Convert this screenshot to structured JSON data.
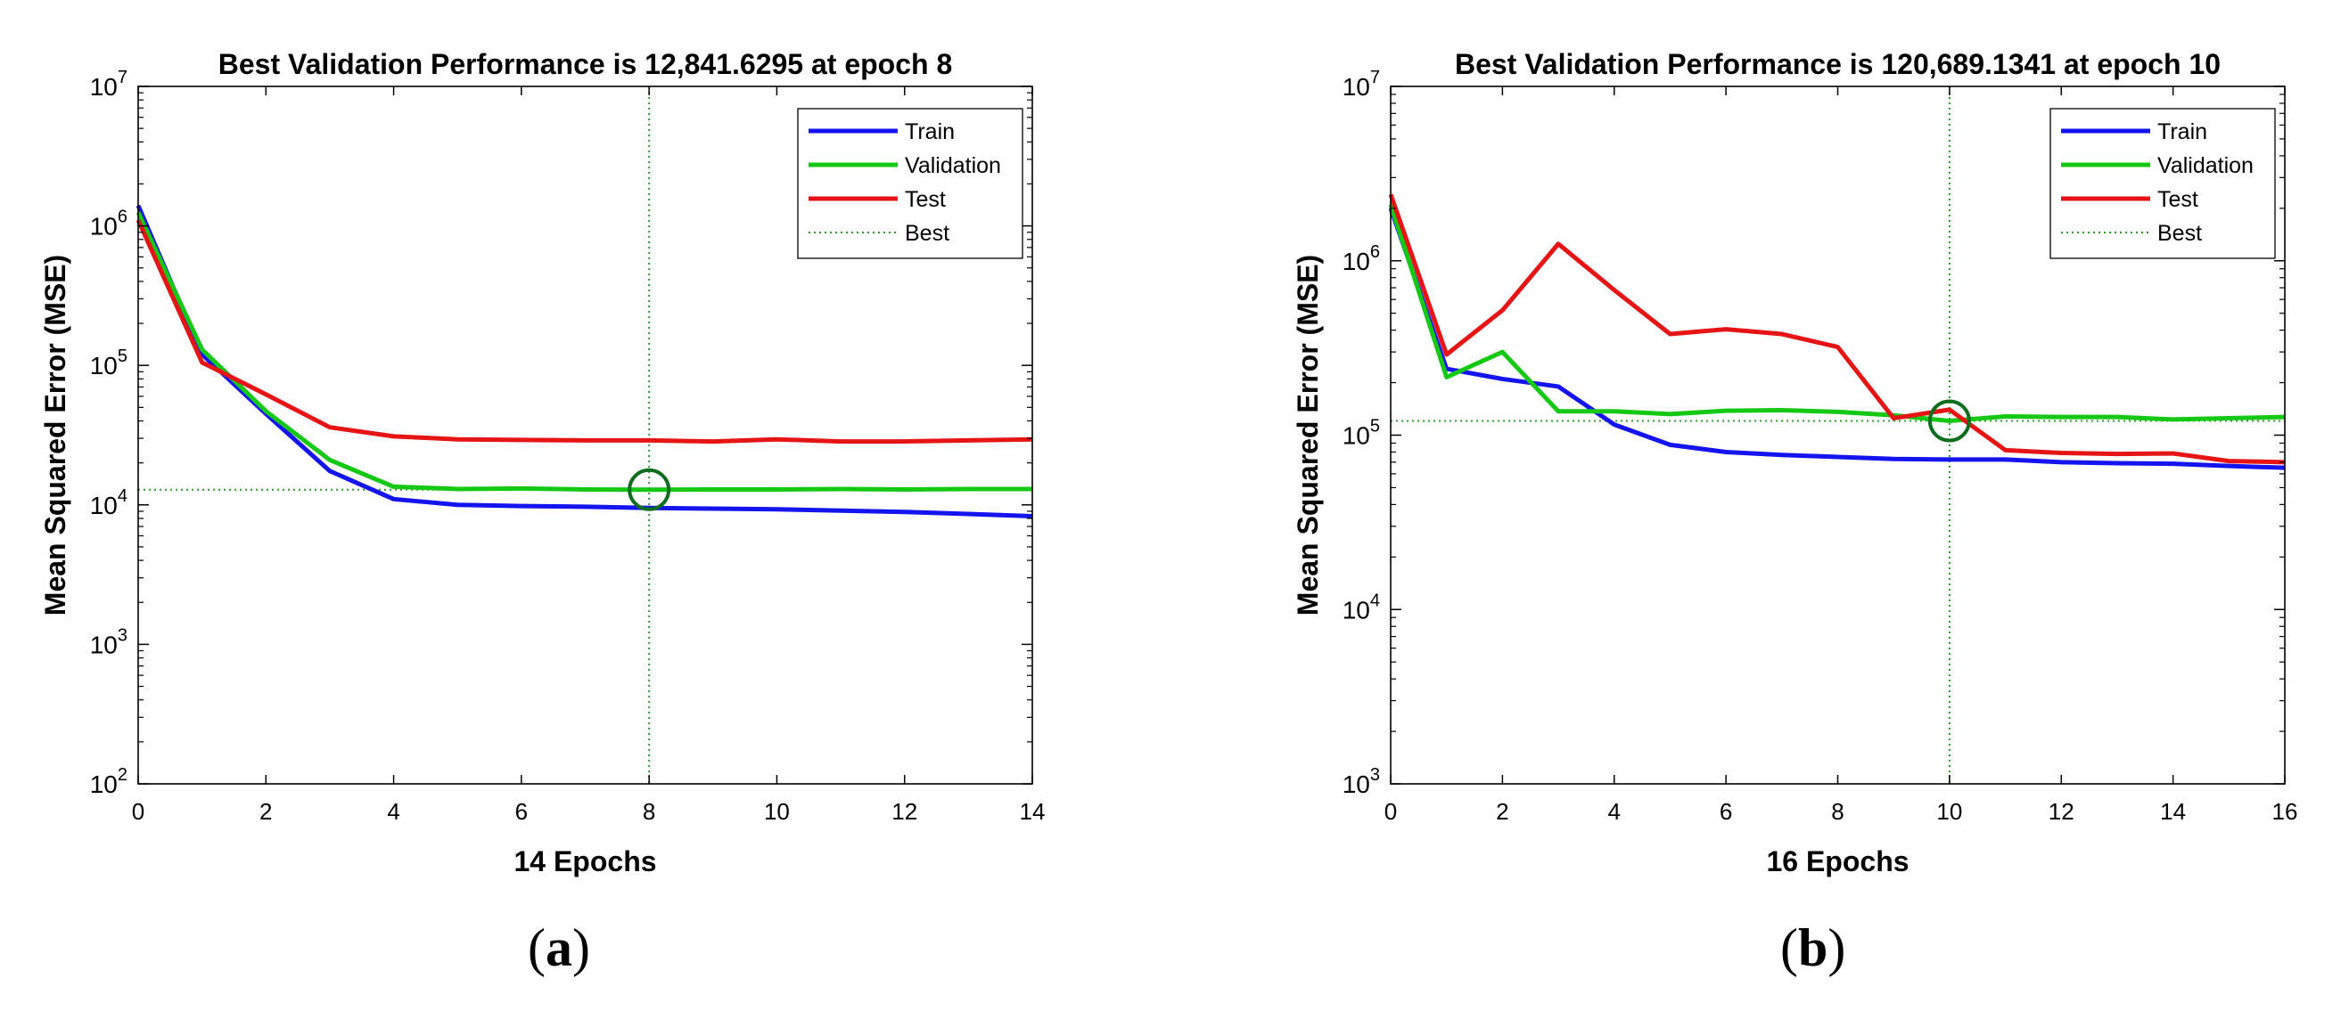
{
  "chart_data": [
    {
      "type": "line",
      "panel_label": "a",
      "title": "Best Validation Performance is 12,841.6295 at epoch 8",
      "xlabel": "14 Epochs",
      "ylabel": "Mean Squared Error  (MSE)",
      "yscale": "log",
      "xlim": [
        0,
        14
      ],
      "ylim_exp": [
        2,
        7
      ],
      "xticks": [
        0,
        2,
        4,
        6,
        8,
        10,
        12,
        14
      ],
      "xtick_labels": [
        "0",
        "2",
        "4",
        "6",
        "8",
        "10",
        "12",
        "14"
      ],
      "yticks_exp": [
        2,
        3,
        4,
        5,
        6,
        7
      ],
      "ytick_base": "10",
      "ytick_exponents": [
        "2",
        "3",
        "4",
        "5",
        "6",
        "7"
      ],
      "legend_position": "top-right",
      "x": [
        0,
        1,
        2,
        3,
        4,
        5,
        6,
        7,
        8,
        9,
        10,
        11,
        12,
        13,
        14
      ],
      "series": [
        {
          "name": "Train",
          "color": "#1414f0",
          "values": [
            1400000,
            120000,
            45000,
            17500,
            11000,
            10000,
            9800,
            9700,
            9500,
            9400,
            9300,
            9100,
            8900,
            8600,
            8300
          ]
        },
        {
          "name": "Validation",
          "color": "#14c814",
          "values": [
            1250000,
            130000,
            47000,
            21000,
            13500,
            13000,
            13100,
            12900,
            12841.6295,
            12900,
            12900,
            13000,
            12900,
            13000,
            13000
          ]
        },
        {
          "name": "Test",
          "color": "#e61414",
          "values": [
            1100000,
            105000,
            62000,
            36000,
            31000,
            29500,
            29200,
            29000,
            29000,
            28500,
            29500,
            28500,
            28500,
            29000,
            29500
          ]
        }
      ],
      "best": {
        "label": "Best",
        "epoch": 8,
        "value": 12841.6295,
        "color": "#28a028"
      }
    },
    {
      "type": "line",
      "panel_label": "b",
      "title": "Best Validation Performance is 120,689.1341 at epoch 10",
      "xlabel": "16 Epochs",
      "ylabel": "Mean Squared Error  (MSE)",
      "yscale": "log",
      "xlim": [
        0,
        16
      ],
      "ylim_exp": [
        3,
        7
      ],
      "xticks": [
        0,
        2,
        4,
        6,
        8,
        10,
        12,
        14,
        16
      ],
      "xtick_labels": [
        "0",
        "2",
        "4",
        "6",
        "8",
        "10",
        "12",
        "14",
        "16"
      ],
      "yticks_exp": [
        3,
        4,
        5,
        6,
        7
      ],
      "ytick_base": "10",
      "ytick_exponents": [
        "3",
        "4",
        "5",
        "6",
        "7"
      ],
      "legend_position": "top-right",
      "x": [
        0,
        1,
        2,
        3,
        4,
        5,
        6,
        7,
        8,
        9,
        10,
        11,
        12,
        13,
        14,
        15,
        16
      ],
      "series": [
        {
          "name": "Train",
          "color": "#1414f0",
          "values": [
            2000000,
            240000,
            210000,
            190000,
            115000,
            88000,
            80000,
            77000,
            75000,
            73000,
            72500,
            72500,
            70000,
            69000,
            68500,
            66500,
            65000
          ]
        },
        {
          "name": "Validation",
          "color": "#14c814",
          "values": [
            2100000,
            215000,
            300000,
            137000,
            137000,
            132000,
            138000,
            139000,
            136000,
            130000,
            120689.1341,
            128000,
            127000,
            127000,
            123000,
            125000,
            127000
          ]
        },
        {
          "name": "Test",
          "color": "#e61414",
          "values": [
            2400000,
            290000,
            520000,
            1250000,
            680000,
            380000,
            405000,
            380000,
            320000,
            125000,
            140000,
            82000,
            79000,
            78000,
            78500,
            71000,
            70000
          ]
        }
      ],
      "best": {
        "label": "Best",
        "epoch": 10,
        "value": 120689.1341,
        "color": "#28a028"
      }
    }
  ]
}
